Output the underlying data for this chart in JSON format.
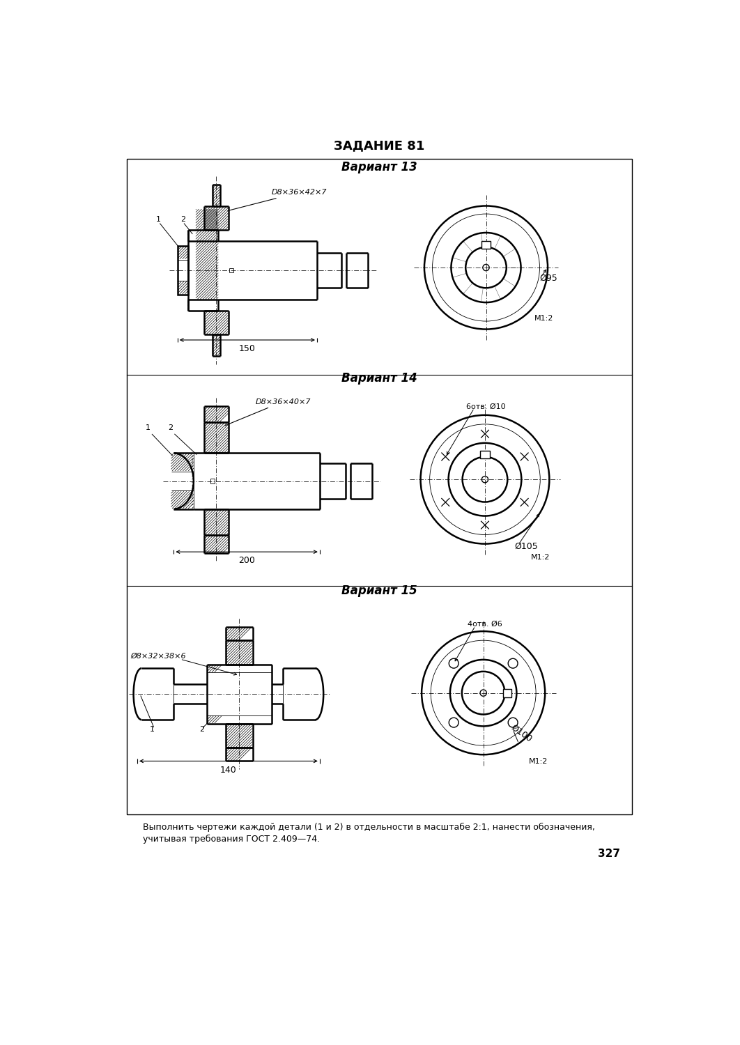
{
  "title": "ЗАДАНИЕ 81",
  "variant13": "Вариант 13",
  "variant14": "Вариант 14",
  "variant15": "Вариант 15",
  "footer_line1": "Выполнить чертежи каждой детали (1 и 2) в отдельности в масштабе 2:1, нанести обозначения,",
  "footer_line2": "учитывая требования ГОСТ 2.409—74.",
  "page_number": "327",
  "bg_color": "#ffffff"
}
